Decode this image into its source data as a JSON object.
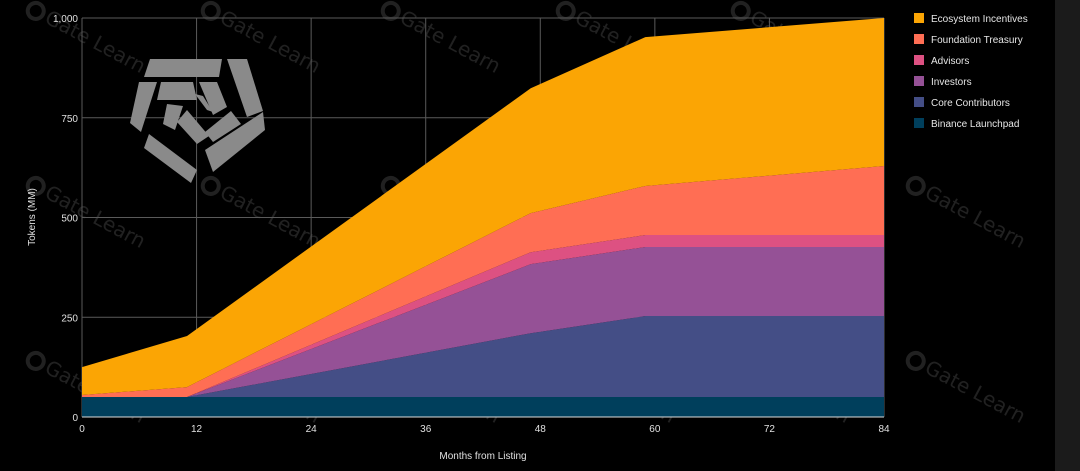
{
  "chart_data": {
    "type": "area",
    "stacked": true,
    "title": "",
    "xlabel": "Months from Listing",
    "ylabel": "Tokens (MM)",
    "xlim": [
      0,
      84
    ],
    "ylim": [
      0,
      1000
    ],
    "xticks": [
      "0",
      "12",
      "24",
      "36",
      "48",
      "60",
      "72",
      "84"
    ],
    "yticks": [
      "0",
      "250",
      "500",
      "750",
      "1,000"
    ],
    "grid": true,
    "legend_position": "right",
    "x": [
      0,
      11,
      47,
      59,
      84
    ],
    "series": [
      {
        "name": "Binance Launchpad",
        "color": "#003F5C",
        "values": [
          50,
          50,
          50,
          50,
          50
        ]
      },
      {
        "name": "Core Contributors",
        "color": "#444E86",
        "values": [
          0,
          0,
          160,
          203,
          203
        ]
      },
      {
        "name": "Investors",
        "color": "#955196",
        "values": [
          0,
          0,
          173,
          173,
          173
        ]
      },
      {
        "name": "Advisors",
        "color": "#DD5182",
        "values": [
          0,
          0,
          30,
          30,
          30
        ]
      },
      {
        "name": "Foundation Treasury",
        "color": "#FF6E54",
        "values": [
          5,
          25,
          98,
          123,
          173
        ]
      },
      {
        "name": "Ecosystem Incentives",
        "color": "#FBA504",
        "values": [
          70,
          128,
          313,
          373,
          371
        ]
      }
    ]
  },
  "watermark": "Gate Learn"
}
